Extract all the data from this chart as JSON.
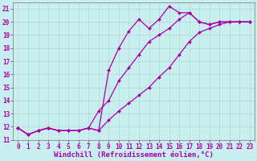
{
  "background_color": "#c8eef0",
  "grid_color": "#b0d8d0",
  "line_color": "#aa00aa",
  "xlabel": "Windchill (Refroidissement éolien,°C)",
  "xlim": [
    -0.5,
    23.5
  ],
  "ylim": [
    11,
    21.5
  ],
  "xticks": [
    0,
    1,
    2,
    3,
    4,
    5,
    6,
    7,
    8,
    9,
    10,
    11,
    12,
    13,
    14,
    15,
    16,
    17,
    18,
    19,
    20,
    21,
    22,
    23
  ],
  "yticks": [
    11,
    12,
    13,
    14,
    15,
    16,
    17,
    18,
    19,
    20,
    21
  ],
  "line1_x": [
    0,
    1,
    2,
    3,
    4,
    5,
    6,
    7,
    8,
    9,
    10,
    11,
    12,
    13,
    14,
    15,
    16,
    17,
    18,
    19,
    20,
    21,
    22,
    23
  ],
  "line1_y": [
    11.9,
    11.4,
    11.7,
    11.9,
    11.7,
    11.7,
    11.7,
    11.9,
    11.7,
    16.3,
    18.0,
    19.3,
    20.2,
    19.5,
    20.2,
    21.2,
    20.7,
    20.7,
    20.0,
    19.8,
    20.0,
    20.0,
    20.0,
    20.0
  ],
  "line2_x": [
    0,
    1,
    2,
    3,
    4,
    5,
    6,
    7,
    8,
    9,
    10,
    11,
    12,
    13,
    14,
    15,
    16,
    17,
    18,
    19,
    20,
    21,
    22,
    23
  ],
  "line2_y": [
    11.9,
    11.4,
    11.7,
    11.9,
    11.7,
    11.7,
    11.7,
    11.9,
    13.2,
    14.0,
    15.5,
    16.5,
    17.5,
    18.5,
    19.0,
    19.5,
    20.2,
    20.7,
    20.0,
    19.8,
    20.0,
    20.0,
    20.0,
    20.0
  ],
  "line3_x": [
    0,
    1,
    2,
    3,
    4,
    5,
    6,
    7,
    8,
    9,
    10,
    11,
    12,
    13,
    14,
    15,
    16,
    17,
    18,
    19,
    20,
    21,
    22,
    23
  ],
  "line3_y": [
    11.9,
    11.4,
    11.7,
    11.9,
    11.7,
    11.7,
    11.7,
    11.9,
    11.7,
    12.5,
    13.2,
    13.8,
    14.4,
    15.0,
    15.8,
    16.5,
    17.5,
    18.5,
    19.2,
    19.5,
    19.8,
    20.0,
    20.0,
    20.0
  ],
  "font_size_label": 6.5,
  "font_size_tick": 5.5
}
